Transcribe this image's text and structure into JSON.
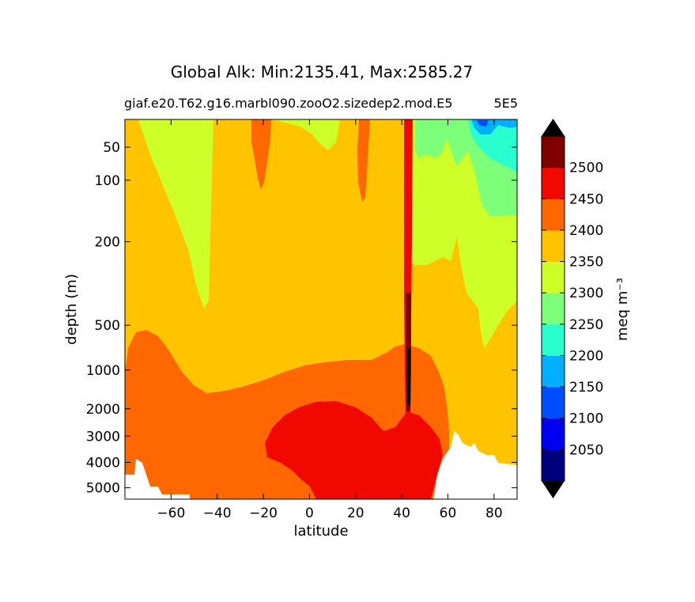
{
  "chart_data": {
    "type": "filled-contour",
    "title": "Global Alk: Min:2135.41, Max:2585.27",
    "subtitle_left": "giaf.e20.T62.g16.marbl090.zooO2.sizedep2.mod.E5",
    "subtitle_right": "5E5",
    "xlabel": "latitude",
    "ylabel": "depth (m)",
    "x_ticks": [
      -60,
      -40,
      -20,
      0,
      20,
      40,
      60,
      80
    ],
    "x_tick_labels": [
      "−60",
      "−40",
      "−20",
      "0",
      "20",
      "40",
      "60",
      "80"
    ],
    "xlim": [
      -80,
      90
    ],
    "y_ticks": [
      50,
      100,
      200,
      500,
      1000,
      2000,
      3000,
      4000,
      5000
    ],
    "y_tick_labels": [
      "50",
      "100",
      "200",
      "500",
      "1000",
      "2000",
      "3000",
      "4000",
      "5000"
    ],
    "ylim": [
      5500,
      0
    ],
    "y_scale": "stretched (log-like), depth increasing downward",
    "colorbar": {
      "label": "meq m⁻³",
      "extend": "both",
      "levels": [
        2000,
        2050,
        2100,
        2150,
        2200,
        2250,
        2300,
        2350,
        2400,
        2450,
        2500,
        2550
      ],
      "tick_labels": [
        "2050",
        "2100",
        "2150",
        "2200",
        "2250",
        "2300",
        "2350",
        "2400",
        "2450",
        "2500"
      ],
      "colors": [
        "#00007f",
        "#0000f1",
        "#004cff",
        "#00b0ff",
        "#29ffce",
        "#7dff7a",
        "#ceff29",
        "#ffc400",
        "#ff6800",
        "#f10800",
        "#7f0000"
      ],
      "under_color": "#000000",
      "over_color": "#000000"
    },
    "regions_summary": [
      {
        "band": "2350-2400",
        "description": "background upper/intermediate ocean"
      },
      {
        "band": "2300-2350",
        "description": "southern upper layer (-75 to -45), northern upper layer (45 to 90)"
      },
      {
        "band": "2400-2450",
        "description": "deep ocean below ~1000 m, narrow tongues near -25, 20 and 43"
      },
      {
        "band": "2450-2500",
        "description": "deep core 0-55 latitude below ~2500 m"
      },
      {
        "band": "2500-2550",
        "description": "vertical column near 43 latitude"
      },
      {
        "band": "2250-2300",
        "description": "northern near-surface 55-90"
      },
      {
        "band": "2200-2250",
        "description": "northern surface near 75-90"
      },
      {
        "band": "2150-2200",
        "description": "small northern surface patch near 75"
      }
    ]
  }
}
